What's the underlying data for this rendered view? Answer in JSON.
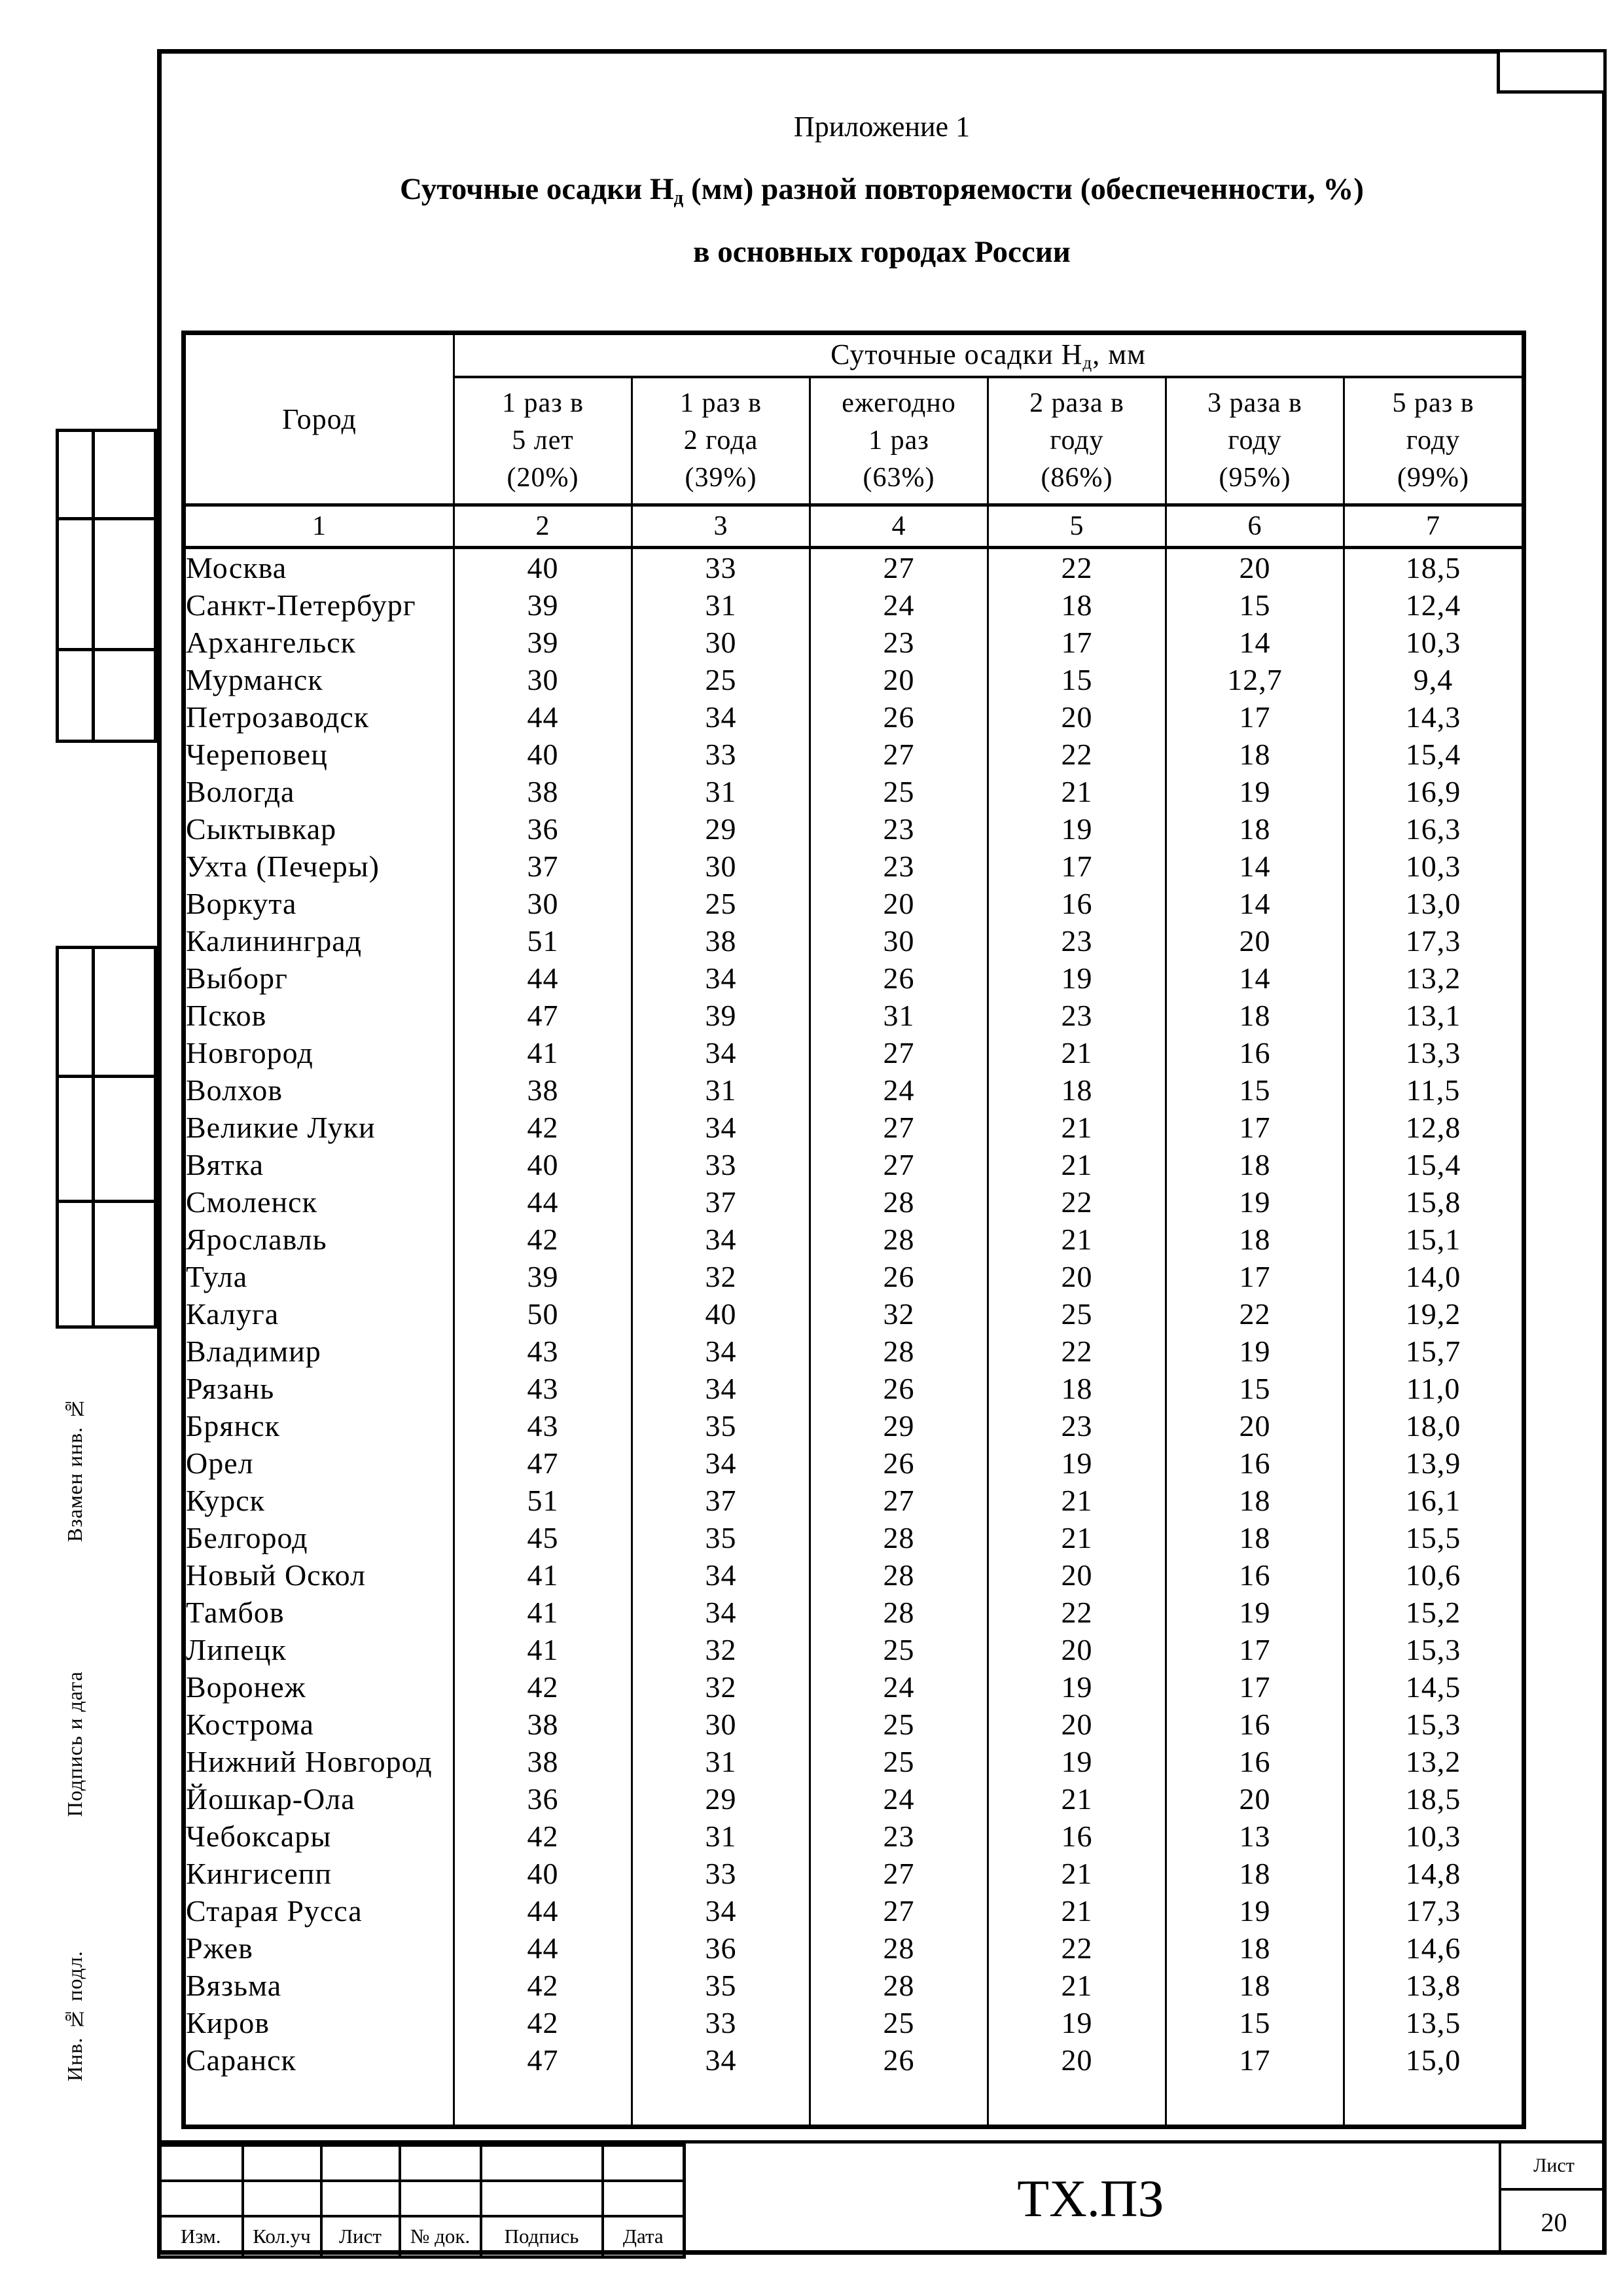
{
  "colors": {
    "ink": "#000000",
    "paper": "#ffffff"
  },
  "header": {
    "appendix": "Приложение 1",
    "title_prefix": "Суточные осадки Н",
    "title_sub": "д",
    "title_suffix": " (мм) разной повторяемости (обеспеченности, %)",
    "subtitle": "в основных городах России"
  },
  "table": {
    "city_col": "Город",
    "span_prefix": "Суточные осадки Н",
    "span_sub": "д",
    "span_suffix": ", мм",
    "col_headers": [
      [
        "1 раз в",
        "5 лет",
        "(20%)"
      ],
      [
        "1 раз в",
        "2 года",
        "(39%)"
      ],
      [
        "ежегодно",
        "1 раз",
        "(63%)"
      ],
      [
        "2 раза в",
        "году",
        "(86%)"
      ],
      [
        "3 раза в",
        "году",
        "(95%)"
      ],
      [
        "5 раз в",
        "году",
        "(99%)"
      ]
    ],
    "index_row": [
      "1",
      "2",
      "3",
      "4",
      "5",
      "6",
      "7"
    ],
    "rows": [
      [
        "Москва",
        "40",
        "33",
        "27",
        "22",
        "20",
        "18,5"
      ],
      [
        "Санкт-Петербург",
        "39",
        "31",
        "24",
        "18",
        "15",
        "12,4"
      ],
      [
        "Архангельск",
        "39",
        "30",
        "23",
        "17",
        "14",
        "10,3"
      ],
      [
        "Мурманск",
        "30",
        "25",
        "20",
        "15",
        "12,7",
        "9,4"
      ],
      [
        "Петрозаводск",
        "44",
        "34",
        "26",
        "20",
        "17",
        "14,3"
      ],
      [
        "Череповец",
        "40",
        "33",
        "27",
        "22",
        "18",
        "15,4"
      ],
      [
        "Вологда",
        "38",
        "31",
        "25",
        "21",
        "19",
        "16,9"
      ],
      [
        "Сыктывкар",
        "36",
        "29",
        "23",
        "19",
        "18",
        "16,3"
      ],
      [
        "Ухта (Печеры)",
        "37",
        "30",
        "23",
        "17",
        "14",
        "10,3"
      ],
      [
        "Воркута",
        "30",
        "25",
        "20",
        "16",
        "14",
        "13,0"
      ],
      [
        "Калининград",
        "51",
        "38",
        "30",
        "23",
        "20",
        "17,3"
      ],
      [
        "Выборг",
        "44",
        "34",
        "26",
        "19",
        "14",
        "13,2"
      ],
      [
        "Псков",
        "47",
        "39",
        "31",
        "23",
        "18",
        "13,1"
      ],
      [
        "Новгород",
        "41",
        "34",
        "27",
        "21",
        "16",
        "13,3"
      ],
      [
        "Волхов",
        "38",
        "31",
        "24",
        "18",
        "15",
        "11,5"
      ],
      [
        "Великие Луки",
        "42",
        "34",
        "27",
        "21",
        "17",
        "12,8"
      ],
      [
        "Вятка",
        "40",
        "33",
        "27",
        "21",
        "18",
        "15,4"
      ],
      [
        "Смоленск",
        "44",
        "37",
        "28",
        "22",
        "19",
        "15,8"
      ],
      [
        "Ярославль",
        "42",
        "34",
        "28",
        "21",
        "18",
        "15,1"
      ],
      [
        "Тула",
        "39",
        "32",
        "26",
        "20",
        "17",
        "14,0"
      ],
      [
        "Калуга",
        "50",
        "40",
        "32",
        "25",
        "22",
        "19,2"
      ],
      [
        "Владимир",
        "43",
        "34",
        "28",
        "22",
        "19",
        "15,7"
      ],
      [
        "Рязань",
        "43",
        "34",
        "26",
        "18",
        "15",
        "11,0"
      ],
      [
        "Брянск",
        "43",
        "35",
        "29",
        "23",
        "20",
        "18,0"
      ],
      [
        "Орел",
        "47",
        "34",
        "26",
        "19",
        "16",
        "13,9"
      ],
      [
        "Курск",
        "51",
        "37",
        "27",
        "21",
        "18",
        "16,1"
      ],
      [
        "Белгород",
        "45",
        "35",
        "28",
        "21",
        "18",
        "15,5"
      ],
      [
        "Новый Оскол",
        "41",
        "34",
        "28",
        "20",
        "16",
        "10,6"
      ],
      [
        "Тамбов",
        "41",
        "34",
        "28",
        "22",
        "19",
        "15,2"
      ],
      [
        "Липецк",
        "41",
        "32",
        "25",
        "20",
        "17",
        "15,3"
      ],
      [
        "Воронеж",
        "42",
        "32",
        "24",
        "19",
        "17",
        "14,5"
      ],
      [
        "Кострома",
        "38",
        "30",
        "25",
        "20",
        "16",
        "15,3"
      ],
      [
        "Нижний Новгород",
        "38",
        "31",
        "25",
        "19",
        "16",
        "13,2"
      ],
      [
        "Йошкар-Ола",
        "36",
        "29",
        "24",
        "21",
        "20",
        "18,5"
      ],
      [
        "Чебоксары",
        "42",
        "31",
        "23",
        "16",
        "13",
        "10,3"
      ],
      [
        "Кингисепп",
        "40",
        "33",
        "27",
        "21",
        "18",
        "14,8"
      ],
      [
        "Старая Русса",
        "44",
        "34",
        "27",
        "21",
        "19",
        "17,3"
      ],
      [
        "Ржев",
        "44",
        "36",
        "28",
        "22",
        "18",
        "14,6"
      ],
      [
        "Вязьма",
        "42",
        "35",
        "28",
        "21",
        "18",
        "13,8"
      ],
      [
        "Киров",
        "42",
        "33",
        "25",
        "19",
        "15",
        "13,5"
      ],
      [
        "Саранск",
        "47",
        "34",
        "26",
        "20",
        "17",
        "15,0"
      ]
    ]
  },
  "titleblock": {
    "labels": [
      "Изм.",
      "Кол.уч",
      "Лист",
      "№ док.",
      "Подпись",
      "Дата"
    ],
    "doc_code": "ТХ.ПЗ",
    "sheet_label": "Лист",
    "sheet_number": "20"
  },
  "sidebar": {
    "labels": [
      "Взамен инв. №",
      "Подпись и дата",
      "Инв. № подл."
    ]
  }
}
